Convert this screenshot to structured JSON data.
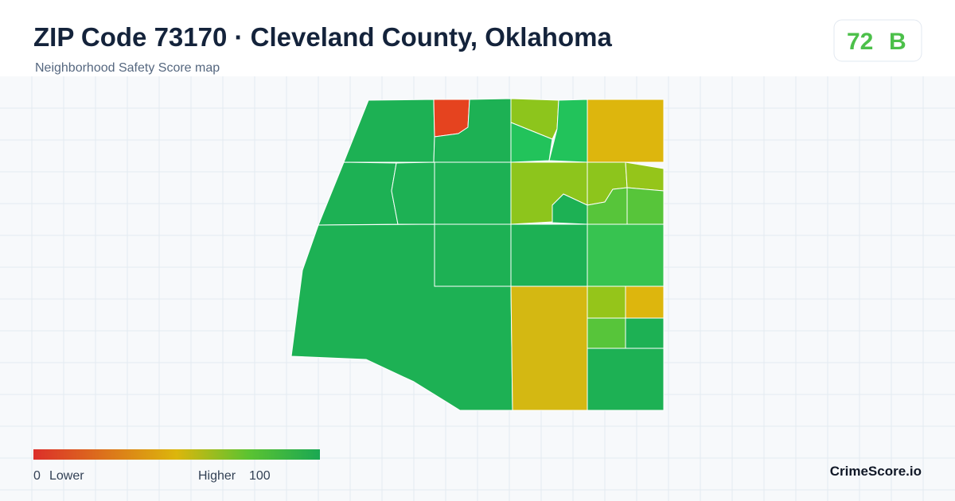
{
  "header": {
    "title": "ZIP Code 73170 · Cleveland County, Oklahoma",
    "subtitle": "Neighborhood Safety Score map",
    "score": 72,
    "grade": "B"
  },
  "legend": {
    "min": 0,
    "min_label": "Lower",
    "max_label": "Higher",
    "max": 100
  },
  "brand": "CrimeScore.io"
}
